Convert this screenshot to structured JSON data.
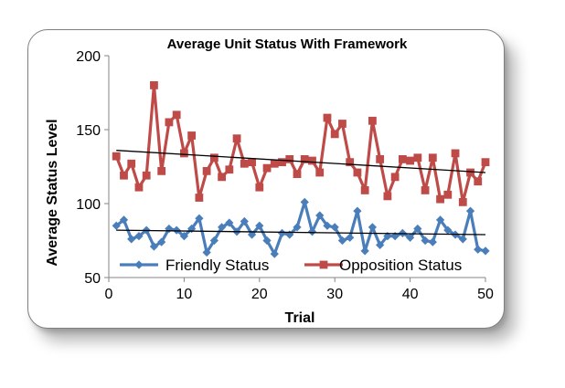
{
  "chart_data": {
    "type": "line",
    "title": "Average Unit Status With Framework",
    "xlabel": "Trial",
    "ylabel": "Average Status Level",
    "xlim": [
      0,
      50
    ],
    "ylim": [
      50,
      200
    ],
    "x_ticks": [
      "0",
      "10",
      "20",
      "30",
      "40",
      "50"
    ],
    "y_ticks": [
      "50",
      "100",
      "150",
      "200"
    ],
    "grid": false,
    "legend_position": "bottom",
    "x": [
      1,
      2,
      3,
      4,
      5,
      6,
      7,
      8,
      9,
      10,
      11,
      12,
      13,
      14,
      15,
      16,
      17,
      18,
      19,
      20,
      21,
      22,
      23,
      24,
      25,
      26,
      27,
      28,
      29,
      30,
      31,
      32,
      33,
      34,
      35,
      36,
      37,
      38,
      39,
      40,
      41,
      42,
      43,
      44,
      45,
      46,
      47,
      48,
      49,
      50
    ],
    "series": [
      {
        "name": "Friendly Status",
        "color": "#4a7ebb",
        "marker": "diamond",
        "values": [
          85,
          89,
          76,
          78,
          82,
          71,
          74,
          83,
          82,
          78,
          83,
          90,
          67,
          75,
          84,
          87,
          81,
          88,
          79,
          85,
          75,
          66,
          80,
          79,
          84,
          101,
          81,
          92,
          85,
          84,
          75,
          77,
          95,
          68,
          84,
          72,
          78,
          78,
          80,
          77,
          83,
          75,
          74,
          89,
          82,
          79,
          76,
          95,
          69,
          68
        ],
        "trend": [
          82,
          79
        ]
      },
      {
        "name": "Opposition Status",
        "color": "#be4b48",
        "marker": "square",
        "values": [
          132,
          119,
          127,
          111,
          119,
          180,
          122,
          155,
          160,
          134,
          146,
          104,
          122,
          131,
          118,
          123,
          144,
          127,
          128,
          111,
          124,
          127,
          128,
          130,
          120,
          130,
          129,
          121,
          158,
          147,
          154,
          128,
          121,
          109,
          156,
          130,
          105,
          118,
          130,
          129,
          131,
          109,
          131,
          103,
          106,
          134,
          101,
          121,
          115,
          128
        ],
        "trend": [
          136,
          121
        ]
      }
    ]
  }
}
